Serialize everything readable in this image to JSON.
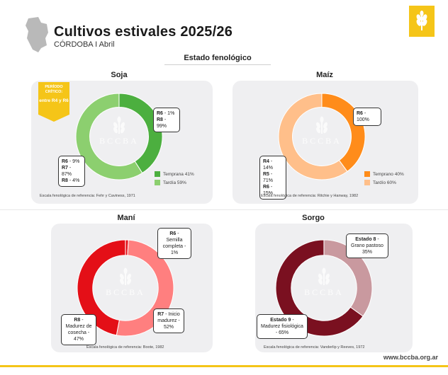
{
  "header": {
    "title": "Cultivos estivales 2025/26",
    "subtitle": "CÓRDOBA I Abril",
    "section": "Estado fenológico",
    "url": "www.bccba.org.ar"
  },
  "watermark": "BCCBA",
  "period_badge": {
    "line1": "PERÍODO CRÍTICO:",
    "line2": "entre R4 y R6"
  },
  "colors": {
    "soja_temprana": "#4caf3f",
    "soja_tardia": "#8ccf6f",
    "maiz_temprano": "#ff8c1a",
    "maiz_tardio": "#ffbf8a",
    "mani_r7": "#ff7f7f",
    "mani_r8": "#e40f17",
    "sorgo_e8": "#c9999f",
    "sorgo_e9": "#7a1020",
    "accent": "#f5c518"
  },
  "crops": {
    "soja": {
      "name": "Soja",
      "callout_a": [
        {
          "stage": "R6",
          "text": " - 1%"
        },
        {
          "stage": "R8",
          "text": " - 99%"
        }
      ],
      "callout_b": [
        {
          "stage": "R6",
          "text": " - 9%"
        },
        {
          "stage": "R7",
          "text": " - 87%"
        },
        {
          "stage": "R8",
          "text": " - 4%"
        }
      ],
      "legend": [
        "Temprana 41%",
        "Tardía 59%"
      ],
      "ref": "Escala fenológica de referencia: Fehr y Caviness, 1971"
    },
    "maiz": {
      "name": "Maíz",
      "callout_a": [
        {
          "stage": "R6",
          "text": " - 100%"
        }
      ],
      "callout_b": [
        {
          "stage": "R4",
          "text": " - 14%"
        },
        {
          "stage": "R5",
          "text": " - 71%"
        },
        {
          "stage": "R6",
          "text": " - 15%"
        }
      ],
      "legend": [
        "Temprano 40%",
        "Tardío 60%"
      ],
      "ref": "Escala fenológica de referencia: Ritchie y Hanway, 1982"
    },
    "mani": {
      "name": "Maní",
      "callout_a": {
        "stage": "R6",
        "text": " - Semilla completa - 1%"
      },
      "callout_b": {
        "stage": "R7",
        "text": " - Inicio madurez - 52%"
      },
      "callout_c": {
        "stage": "R8",
        "text": " - Madurez de cosecha - 47%"
      },
      "ref": "Escala fenológica de referencia: Boote, 1982"
    },
    "sorgo": {
      "name": "Sorgo",
      "callout_a": {
        "stage": "Estado 8",
        "text": " - Grano pastoso 35%"
      },
      "callout_b": {
        "stage": "Estado 9",
        "text": " - Madurez fisiológica - 65%"
      },
      "ref": "Escala fenológica de referencia: Vanderlip y Reeves, 1972"
    }
  },
  "chart_data": [
    {
      "type": "pie",
      "title": "Soja",
      "categories": [
        "Temprana",
        "Tardía"
      ],
      "values": [
        41,
        59
      ]
    },
    {
      "type": "pie",
      "title": "Maíz",
      "categories": [
        "Temprano",
        "Tardío"
      ],
      "values": [
        40,
        60
      ]
    },
    {
      "type": "pie",
      "title": "Maní",
      "categories": [
        "R6",
        "R7",
        "R8"
      ],
      "values": [
        1,
        52,
        47
      ]
    },
    {
      "type": "pie",
      "title": "Sorgo",
      "categories": [
        "Estado 8",
        "Estado 9"
      ],
      "values": [
        35,
        65
      ]
    }
  ]
}
